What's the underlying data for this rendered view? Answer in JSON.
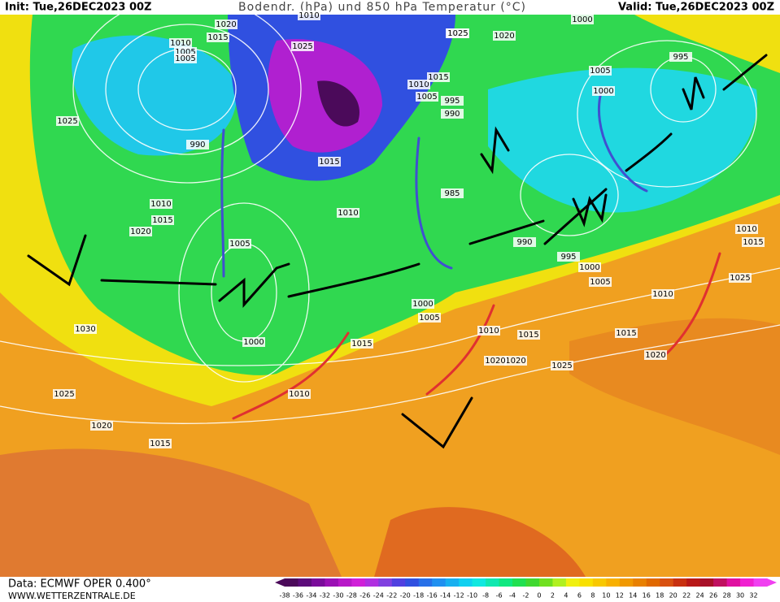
{
  "header": {
    "init": "Init: Tue,26DEC2023 00Z",
    "title": "Bodendr. (hPa) und 850 hPa Temperatur (°C)",
    "valid": "Valid: Tue,26DEC2023 00Z"
  },
  "footer": {
    "data": "Data: ECMWF OPER 0.400°",
    "site": "WWW.WETTERZENTRALE.DE"
  },
  "legend": {
    "ticks": [
      "-38",
      "-36",
      "-34",
      "-32",
      "-30",
      "-28",
      "-26",
      "-24",
      "-22",
      "-20",
      "-18",
      "-16",
      "-14",
      "-12",
      "-10",
      "-8",
      "-6",
      "-4",
      "-2",
      "0",
      "2",
      "4",
      "6",
      "8",
      "10",
      "12",
      "14",
      "16",
      "18",
      "20",
      "22",
      "24",
      "26",
      "28",
      "30",
      "32"
    ],
    "colors": [
      "#4b0a5a",
      "#5c0c7a",
      "#7a0c9a",
      "#9a10b4",
      "#b818c8",
      "#d020d8",
      "#b030e0",
      "#8040e0",
      "#5040e0",
      "#3050e0",
      "#2870e8",
      "#2090f0",
      "#18b0f0",
      "#10d0f0",
      "#10e8e0",
      "#10e8b0",
      "#10e880",
      "#20e050",
      "#40d830",
      "#70e020",
      "#b0f020",
      "#f0f010",
      "#f8e000",
      "#f8c800",
      "#f8b000",
      "#f09800",
      "#e88000",
      "#e06800",
      "#d85010",
      "#c83010",
      "#b81818",
      "#a81028",
      "#c01060",
      "#e010a0",
      "#f020d0",
      "#f040f0"
    ]
  },
  "isobar_labels": [
    "1020",
    "1015",
    "1025",
    "1010",
    "1005",
    "1005",
    "990",
    "1025",
    "1020",
    "1010",
    "1015",
    "1030",
    "1025",
    "1020",
    "1015",
    "1005",
    "1000",
    "1015",
    "1010",
    "1020",
    "1025",
    "1015",
    "1010",
    "995",
    "990",
    "985",
    "1010",
    "1005",
    "995",
    "1000",
    "1000",
    "1005",
    "995",
    "990",
    "1000",
    "1005",
    "1010",
    "1015",
    "1020",
    "1020",
    "1025",
    "1015",
    "1010",
    "1020",
    "1015",
    "1025",
    "1010",
    "1015",
    "1025",
    "1000",
    "1005",
    "1010"
  ]
}
